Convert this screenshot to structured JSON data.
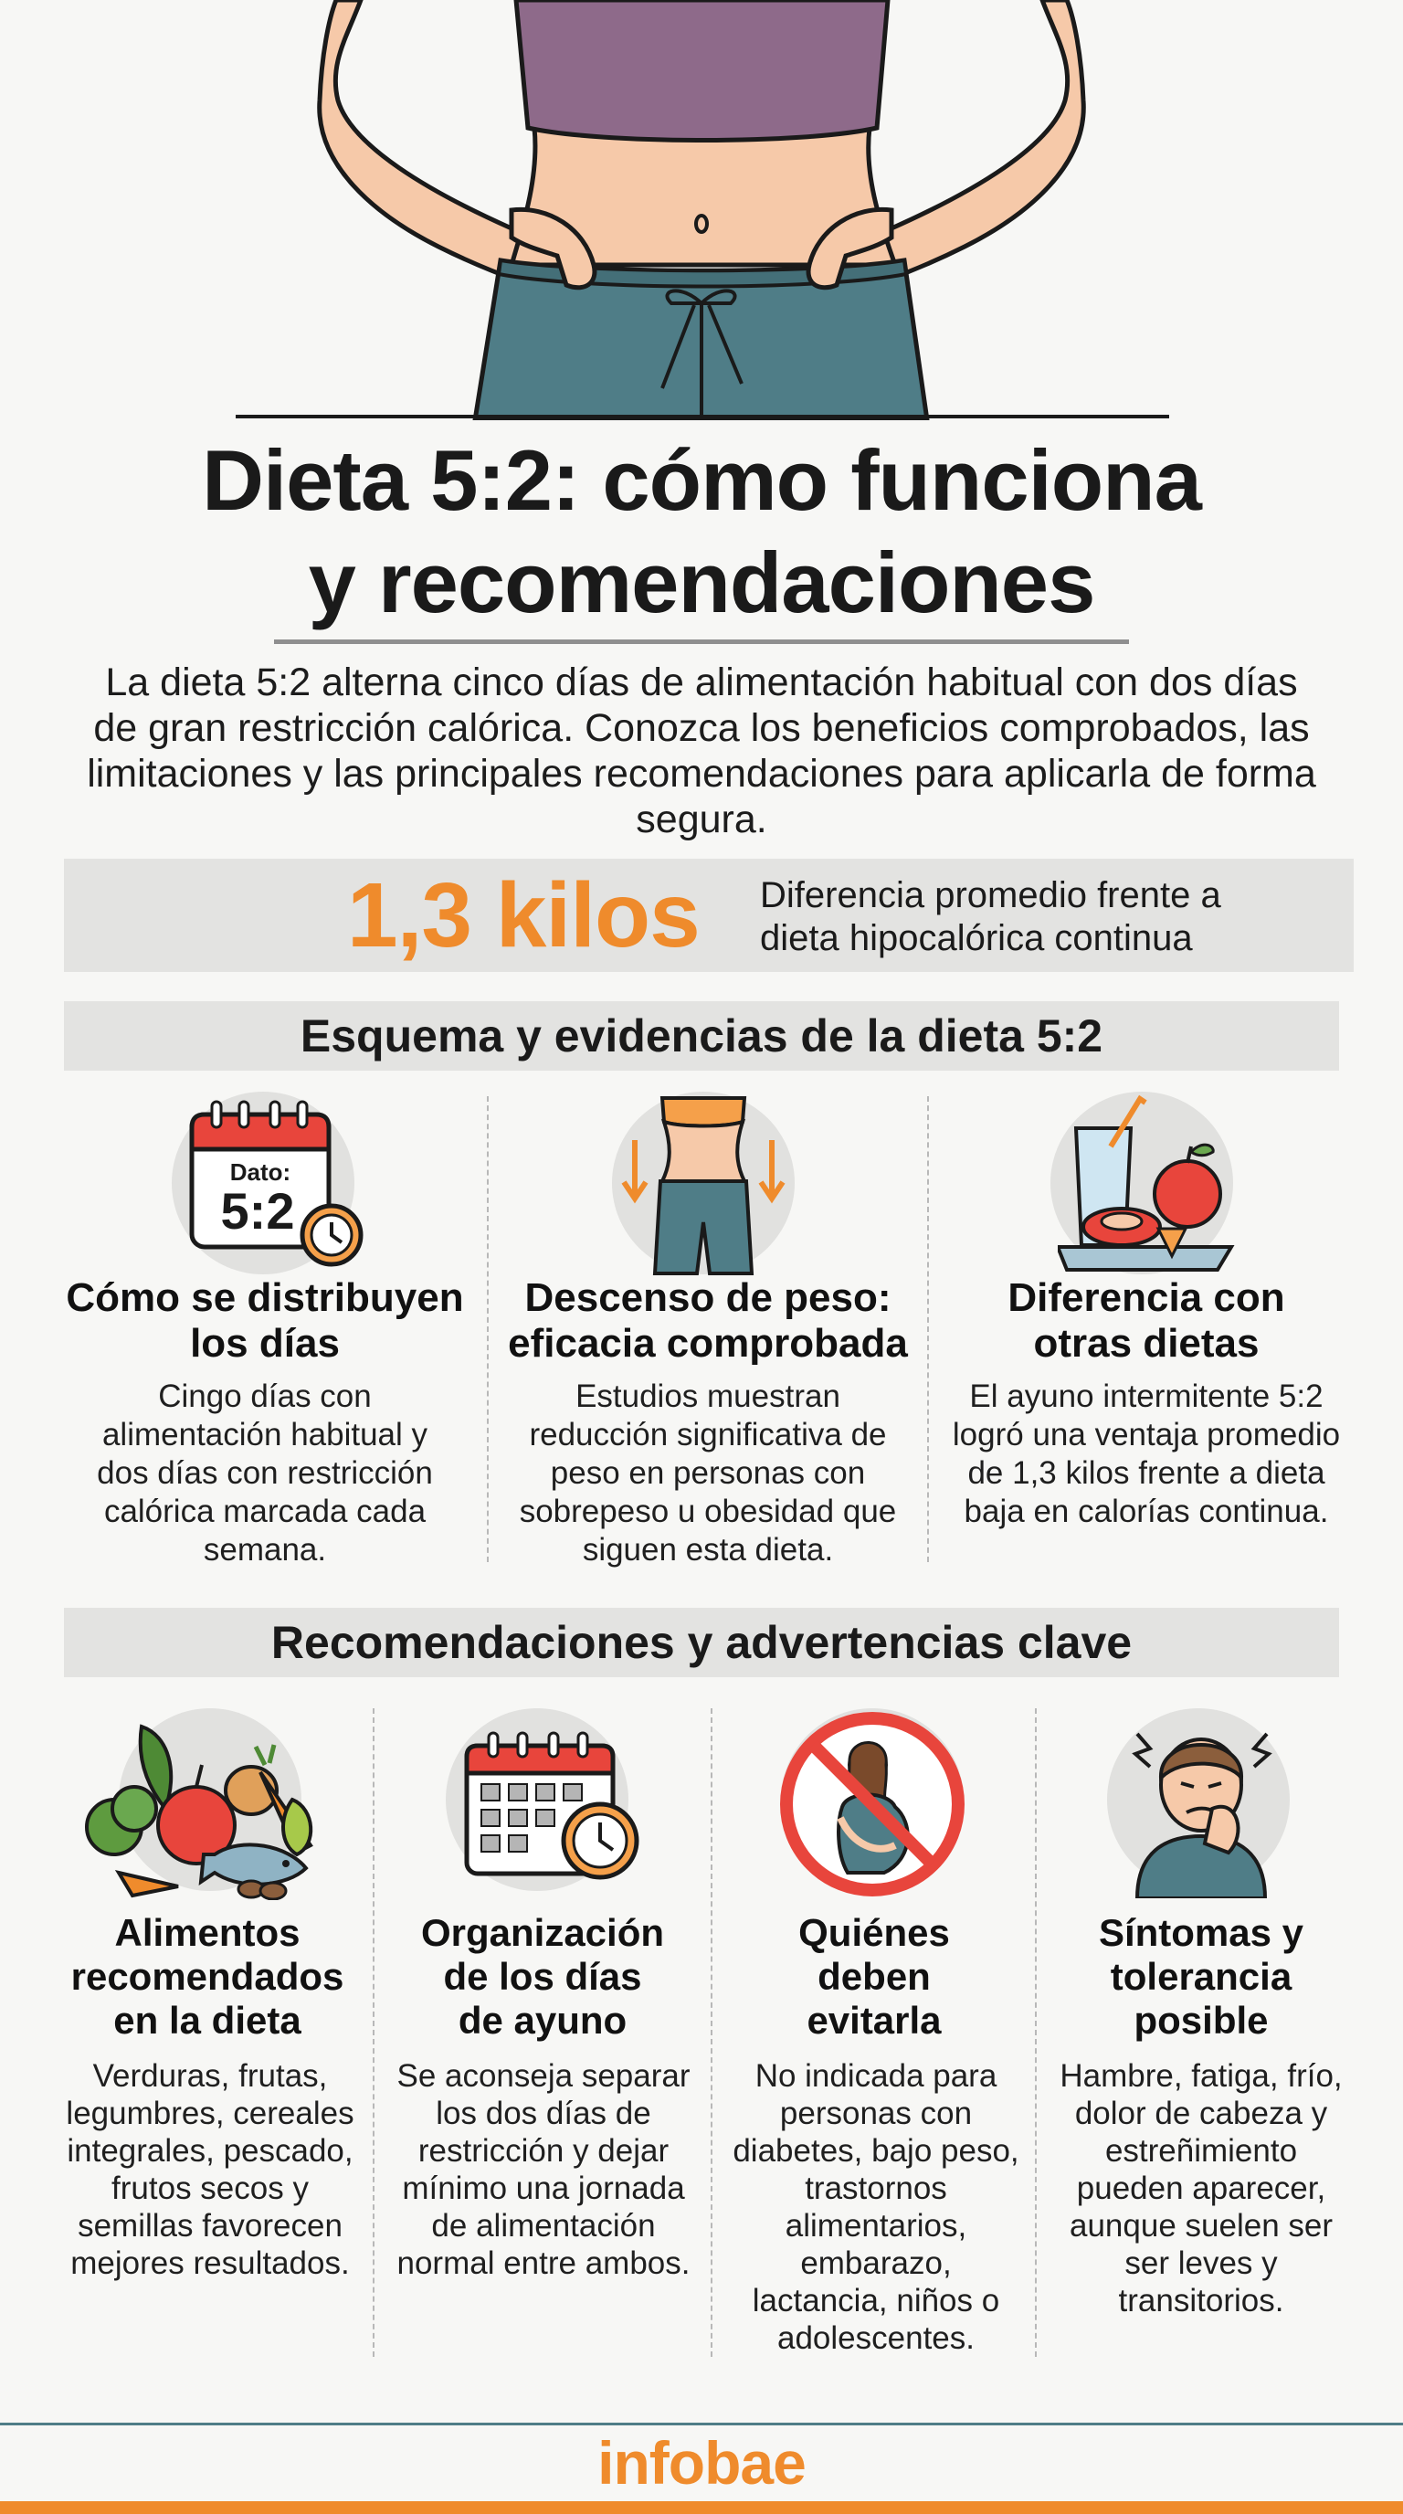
{
  "header": {
    "title_line1": "Dieta 5:2: cómo funciona",
    "title_line2": "y recomendaciones",
    "intro": "La dieta 5:2 alterna cinco días de alimentación habitual con dos días de gran restricción calórica.  Conozca los beneficios comprobados, las limitaciones y las principales recomendaciones para aplicarla de forma segura."
  },
  "stat": {
    "value": "1,3 kilos",
    "desc_line1": "Diferencia promedio frente a",
    "desc_line2": "dieta hipocalórica continua"
  },
  "section1": {
    "heading": "Esquema y evidencias de la dieta 5:2",
    "calendar_label": "Dato:",
    "calendar_value": "5:2",
    "items": [
      {
        "title_line1": "Cómo se distribuyen",
        "title_line2": "los días",
        "text": "Cingo días con alimentación habitual y dos días con restricción calórica marcada cada semana."
      },
      {
        "title_line1": "Descenso de peso:",
        "title_line2": "eficacia comprobada",
        "text": "Estudios muestran reducción significativa de peso en personas con sobrepeso u obesidad que siguen esta dieta."
      },
      {
        "title_line1": "Diferencia con",
        "title_line2": "otras dietas",
        "text": "El ayuno intermitente 5:2 logró una ventaja promedio de 1,3 kilos frente a dieta baja en calorías continua."
      }
    ]
  },
  "section2": {
    "heading": "Recomendaciones y advertencias clave",
    "items": [
      {
        "title_line1": "Alimentos",
        "title_line2": "recomendados",
        "title_line3": "en la dieta",
        "text": "Verduras, frutas, legumbres, cereales integrales, pescado, frutos secos y semillas favorecen mejores resultados."
      },
      {
        "title_line1": "Organización",
        "title_line2": "de los días",
        "title_line3": "de ayuno",
        "text": "Se aconseja separar los dos días de restricción y dejar mínimo una jornada de alimentación normal entre ambos."
      },
      {
        "title_line1": "Quiénes",
        "title_line2": "deben",
        "title_line3": "evitarla",
        "text": "No indicada para personas con diabetes, bajo peso, trastornos alimentarios, embarazo, lactancia, niños o adolescentes."
      },
      {
        "title_line1": "Síntomas y",
        "title_line2": "tolerancia",
        "title_line3": "posible",
        "text": "Hambre, fatiga, frío, dolor de cabeza y estreñimiento pueden aparecer, aunque suelen ser ser leves y transitorios."
      }
    ]
  },
  "footer": {
    "logo": "infobae"
  },
  "colors": {
    "accent": "#ef8b2c",
    "band": "#e3e3e1",
    "teal": "#4f7d87"
  }
}
